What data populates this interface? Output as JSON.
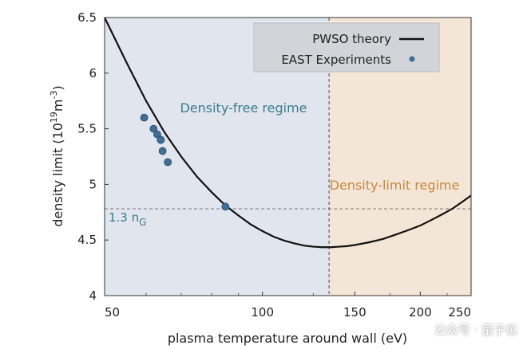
{
  "chart_data": {
    "type": "line",
    "xlabel": "plasma temperature around wall (eV)",
    "ylabel_main": "density limit (10",
    "ylabel_sup1": "19",
    "ylabel_mid": "m",
    "ylabel_sup2": "-3",
    "ylabel_end": ")",
    "xscale": "log",
    "xlim": [
      50,
      250
    ],
    "ylim": [
      4,
      6.5
    ],
    "x_ticks": [
      50,
      100,
      150,
      200,
      250
    ],
    "y_ticks": [
      4,
      4.5,
      5,
      5.5,
      6,
      6.5
    ],
    "series": [
      {
        "name": "PWSO theory",
        "kind": "line",
        "color": "#111111",
        "x": [
          50,
          55,
          60,
          65,
          70,
          75,
          80,
          85,
          90,
          95,
          100,
          105,
          110,
          115,
          120,
          125,
          130,
          135,
          140,
          145,
          150,
          160,
          170,
          180,
          190,
          200,
          210,
          220,
          230,
          240,
          250
        ],
        "y": [
          6.5,
          6.1,
          5.75,
          5.47,
          5.25,
          5.07,
          4.93,
          4.81,
          4.72,
          4.64,
          4.58,
          4.53,
          4.495,
          4.47,
          4.45,
          4.44,
          4.435,
          4.435,
          4.44,
          4.445,
          4.455,
          4.48,
          4.51,
          4.55,
          4.59,
          4.63,
          4.68,
          4.73,
          4.78,
          4.84,
          4.9
        ]
      },
      {
        "name": "EAST Experiments",
        "kind": "scatter",
        "color": "#3f6f95",
        "x": [
          59.5,
          62,
          63,
          64,
          64,
          64.5,
          66,
          85
        ],
        "y": [
          5.6,
          5.5,
          5.45,
          5.4,
          5.4,
          5.3,
          5.2,
          4.8
        ]
      }
    ],
    "reference_line": {
      "y": 4.78,
      "label_main": "1.3 n",
      "label_sub": "G"
    },
    "vertical_divider_x": 134,
    "regions": [
      {
        "label": "Density-free regime",
        "x_from": 50,
        "x_to": 134,
        "fill": "#e1e5ee",
        "text_color": "#3a7d8c"
      },
      {
        "label": "Density-limit regime",
        "x_from": 134,
        "x_to": 250,
        "fill": "#f4e6d6",
        "text_color": "#c58a3f"
      }
    ],
    "legend_position": "top-right"
  },
  "watermark": {
    "text": "公众号 · 量子位"
  }
}
